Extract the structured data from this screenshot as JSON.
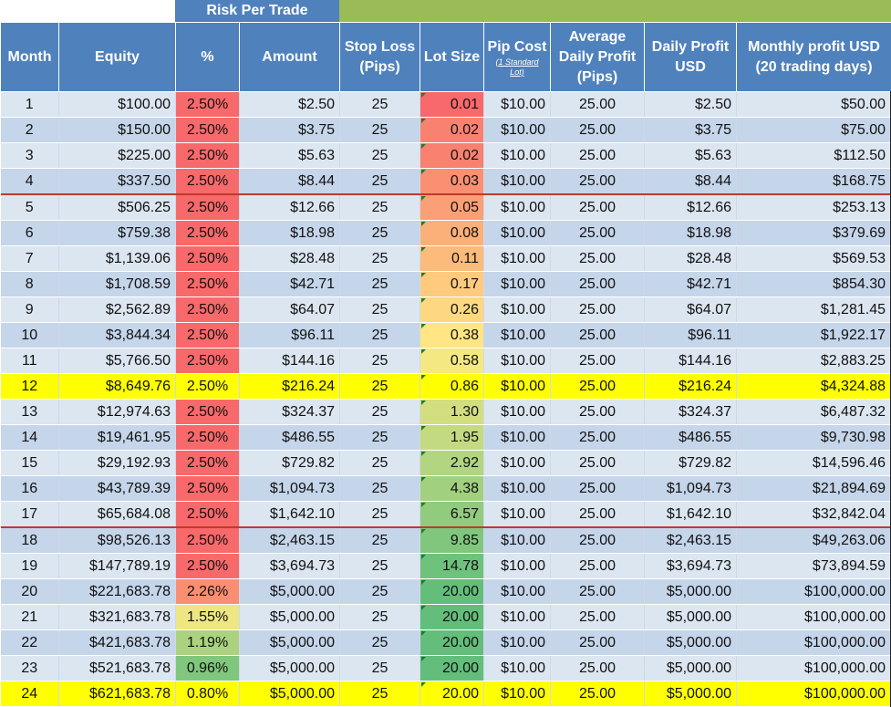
{
  "header_band": {
    "risk_per_trade": "Risk Per Trade"
  },
  "columns": [
    {
      "label": "Month"
    },
    {
      "label": "Equity"
    },
    {
      "label": "%"
    },
    {
      "label": "Amount"
    },
    {
      "label": "Stop Loss\n(Pips)"
    },
    {
      "label": "Lot Size"
    },
    {
      "label": "Pip Cost",
      "sub": "(1 Standard\nLot)"
    },
    {
      "label": "Average\nDaily Profit\n(Pips)"
    },
    {
      "label": "Daily Profit\nUSD"
    },
    {
      "label": "Monthly profit USD\n(20 trading days)"
    }
  ],
  "rows": [
    [
      "1",
      "$100.00",
      "2.50%",
      "$2.50",
      "25",
      "0.01",
      "$10.00",
      "25.00",
      "$2.50",
      "$50.00"
    ],
    [
      "2",
      "$150.00",
      "2.50%",
      "$3.75",
      "25",
      "0.02",
      "$10.00",
      "25.00",
      "$3.75",
      "$75.00"
    ],
    [
      "3",
      "$225.00",
      "2.50%",
      "$5.63",
      "25",
      "0.02",
      "$10.00",
      "25.00",
      "$5.63",
      "$112.50"
    ],
    [
      "4",
      "$337.50",
      "2.50%",
      "$8.44",
      "25",
      "0.03",
      "$10.00",
      "25.00",
      "$8.44",
      "$168.75"
    ],
    [
      "5",
      "$506.25",
      "2.50%",
      "$12.66",
      "25",
      "0.05",
      "$10.00",
      "25.00",
      "$12.66",
      "$253.13"
    ],
    [
      "6",
      "$759.38",
      "2.50%",
      "$18.98",
      "25",
      "0.08",
      "$10.00",
      "25.00",
      "$18.98",
      "$379.69"
    ],
    [
      "7",
      "$1,139.06",
      "2.50%",
      "$28.48",
      "25",
      "0.11",
      "$10.00",
      "25.00",
      "$28.48",
      "$569.53"
    ],
    [
      "8",
      "$1,708.59",
      "2.50%",
      "$42.71",
      "25",
      "0.17",
      "$10.00",
      "25.00",
      "$42.71",
      "$854.30"
    ],
    [
      "9",
      "$2,562.89",
      "2.50%",
      "$64.07",
      "25",
      "0.26",
      "$10.00",
      "25.00",
      "$64.07",
      "$1,281.45"
    ],
    [
      "10",
      "$3,844.34",
      "2.50%",
      "$96.11",
      "25",
      "0.38",
      "$10.00",
      "25.00",
      "$96.11",
      "$1,922.17"
    ],
    [
      "11",
      "$5,766.50",
      "2.50%",
      "$144.16",
      "25",
      "0.58",
      "$10.00",
      "25.00",
      "$144.16",
      "$2,883.25"
    ],
    [
      "12",
      "$8,649.76",
      "2.50%",
      "$216.24",
      "25",
      "0.86",
      "$10.00",
      "25.00",
      "$216.24",
      "$4,324.88"
    ],
    [
      "13",
      "$12,974.63",
      "2.50%",
      "$324.37",
      "25",
      "1.30",
      "$10.00",
      "25.00",
      "$324.37",
      "$6,487.32"
    ],
    [
      "14",
      "$19,461.95",
      "2.50%",
      "$486.55",
      "25",
      "1.95",
      "$10.00",
      "25.00",
      "$486.55",
      "$9,730.98"
    ],
    [
      "15",
      "$29,192.93",
      "2.50%",
      "$729.82",
      "25",
      "2.92",
      "$10.00",
      "25.00",
      "$729.82",
      "$14,596.46"
    ],
    [
      "16",
      "$43,789.39",
      "2.50%",
      "$1,094.73",
      "25",
      "4.38",
      "$10.00",
      "25.00",
      "$1,094.73",
      "$21,894.69"
    ],
    [
      "17",
      "$65,684.08",
      "2.50%",
      "$1,642.10",
      "25",
      "6.57",
      "$10.00",
      "25.00",
      "$1,642.10",
      "$32,842.04"
    ],
    [
      "18",
      "$98,526.13",
      "2.50%",
      "$2,463.15",
      "25",
      "9.85",
      "$10.00",
      "25.00",
      "$2,463.15",
      "$49,263.06"
    ],
    [
      "19",
      "$147,789.19",
      "2.50%",
      "$3,694.73",
      "25",
      "14.78",
      "$10.00",
      "25.00",
      "$3,694.73",
      "$73,894.59"
    ],
    [
      "20",
      "$221,683.78",
      "2.26%",
      "$5,000.00",
      "25",
      "20.00",
      "$10.00",
      "25.00",
      "$5,000.00",
      "$100,000.00"
    ],
    [
      "21",
      "$321,683.78",
      "1.55%",
      "$5,000.00",
      "25",
      "20.00",
      "$10.00",
      "25.00",
      "$5,000.00",
      "$100,000.00"
    ],
    [
      "22",
      "$421,683.78",
      "1.19%",
      "$5,000.00",
      "25",
      "20.00",
      "$10.00",
      "25.00",
      "$5,000.00",
      "$100,000.00"
    ],
    [
      "23",
      "$521,683.78",
      "0.96%",
      "$5,000.00",
      "25",
      "20.00",
      "$10.00",
      "25.00",
      "$5,000.00",
      "$100,000.00"
    ],
    [
      "24",
      "$621,683.78",
      "0.80%",
      "$5,000.00",
      "25",
      "20.00",
      "$10.00",
      "25.00",
      "$5,000.00",
      "$100,000.00"
    ]
  ],
  "highlight_rows": [
    12,
    24
  ],
  "separator_after_rows": [
    4,
    17
  ],
  "colors": {
    "header_blue": "#4f81bd",
    "header_green": "#9bbb59",
    "row_light": "#dce6f1",
    "row_dark": "#c5d5ea",
    "highlight_yellow": "#ffff00",
    "separator_red": "#c0392b",
    "pct_scale": {
      "low": "#63be7b",
      "mid": "#ffeb84",
      "high": "#f8696b"
    },
    "lot_scale": {
      "low": "#f8696b",
      "mid": "#ffeb84",
      "high": "#63be7b"
    }
  }
}
